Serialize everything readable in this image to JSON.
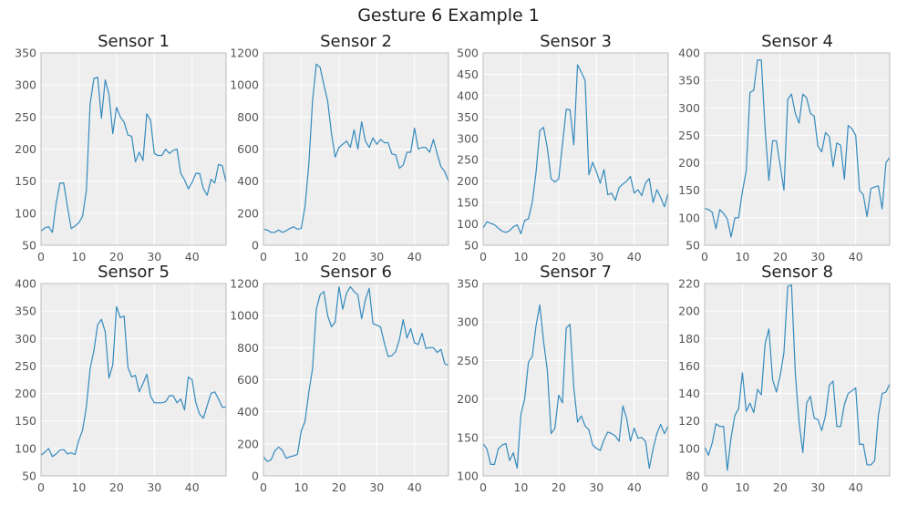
{
  "figure": {
    "title": "Gesture 6 Example 1"
  },
  "colors": {
    "line": "#348abd",
    "panel_bg": "#eeeeee",
    "grid": "#ffffff",
    "spine": "#bcbcbc",
    "tick_text": "#555555",
    "title_text": "#222222"
  },
  "chart_data": [
    {
      "type": "line",
      "title": "Sensor 1",
      "grid": true,
      "xlim": [
        0,
        49
      ],
      "ylim": [
        50,
        350
      ],
      "xticks": [
        0,
        10,
        20,
        30,
        40
      ],
      "yticks": [
        50,
        100,
        150,
        200,
        250,
        300,
        350
      ],
      "y": [
        72,
        77,
        79,
        70,
        115,
        147,
        147,
        110,
        76,
        80,
        85,
        95,
        135,
        270,
        310,
        312,
        248,
        308,
        285,
        224,
        265,
        250,
        242,
        222,
        220,
        180,
        195,
        182,
        255,
        245,
        193,
        190,
        190,
        200,
        193,
        198,
        200,
        162,
        152,
        138,
        148,
        162,
        162,
        138,
        128,
        153,
        147,
        176,
        174,
        148
      ]
    },
    {
      "type": "line",
      "title": "Sensor 2",
      "grid": true,
      "xlim": [
        0,
        49
      ],
      "ylim": [
        0,
        1200
      ],
      "xticks": [
        0,
        10,
        20,
        30,
        40
      ],
      "yticks": [
        0,
        200,
        400,
        600,
        800,
        1000,
        1200
      ],
      "y": [
        100,
        95,
        80,
        80,
        95,
        80,
        90,
        105,
        115,
        100,
        105,
        240,
        500,
        900,
        1130,
        1110,
        1000,
        900,
        700,
        550,
        610,
        630,
        650,
        610,
        720,
        600,
        770,
        650,
        610,
        670,
        630,
        660,
        640,
        640,
        570,
        565,
        480,
        500,
        580,
        580,
        730,
        600,
        610,
        610,
        580,
        660,
        570,
        490,
        460,
        400
      ]
    },
    {
      "type": "line",
      "title": "Sensor 3",
      "grid": true,
      "xlim": [
        0,
        49
      ],
      "ylim": [
        50,
        500
      ],
      "xticks": [
        0,
        10,
        20,
        30,
        40
      ],
      "yticks": [
        50,
        100,
        150,
        200,
        250,
        300,
        350,
        400,
        450,
        500
      ],
      "y": [
        90,
        105,
        101,
        98,
        90,
        83,
        80,
        84,
        93,
        98,
        77,
        108,
        112,
        150,
        220,
        318,
        326,
        277,
        205,
        198,
        205,
        285,
        368,
        367,
        285,
        472,
        455,
        435,
        215,
        244,
        222,
        195,
        227,
        168,
        172,
        155,
        185,
        193,
        200,
        211,
        172,
        180,
        166,
        196,
        206,
        150,
        180,
        162,
        140,
        172
      ]
    },
    {
      "type": "line",
      "title": "Sensor 4",
      "grid": true,
      "xlim": [
        0,
        49
      ],
      "ylim": [
        50,
        400
      ],
      "xticks": [
        0,
        10,
        20,
        30,
        40
      ],
      "yticks": [
        50,
        100,
        150,
        200,
        250,
        300,
        350,
        400
      ],
      "y": [
        117,
        115,
        110,
        80,
        115,
        108,
        98,
        65,
        100,
        100,
        148,
        185,
        328,
        332,
        387,
        387,
        262,
        168,
        240,
        240,
        195,
        150,
        315,
        325,
        290,
        272,
        325,
        318,
        290,
        285,
        230,
        220,
        255,
        248,
        193,
        236,
        232,
        170,
        268,
        262,
        250,
        150,
        142,
        102,
        153,
        156,
        158,
        116,
        200,
        210
      ]
    },
    {
      "type": "line",
      "title": "Sensor 5",
      "grid": true,
      "xlim": [
        0,
        49
      ],
      "ylim": [
        50,
        400
      ],
      "xticks": [
        0,
        10,
        20,
        30,
        40
      ],
      "yticks": [
        50,
        100,
        150,
        200,
        250,
        300,
        350,
        400
      ],
      "y": [
        88,
        93,
        100,
        85,
        90,
        97,
        98,
        90,
        92,
        89,
        115,
        133,
        175,
        245,
        278,
        325,
        335,
        312,
        228,
        252,
        358,
        338,
        341,
        248,
        230,
        233,
        203,
        218,
        235,
        195,
        183,
        183,
        183,
        185,
        196,
        196,
        183,
        190,
        170,
        230,
        225,
        183,
        162,
        155,
        178,
        200,
        203,
        190,
        175,
        175
      ]
    },
    {
      "type": "line",
      "title": "Sensor 6",
      "grid": true,
      "xlim": [
        0,
        49
      ],
      "ylim": [
        0,
        1200
      ],
      "xticks": [
        0,
        10,
        20,
        30,
        40
      ],
      "yticks": [
        0,
        200,
        400,
        600,
        800,
        1000,
        1200
      ],
      "y": [
        120,
        90,
        100,
        155,
        180,
        160,
        110,
        120,
        125,
        135,
        280,
        340,
        520,
        670,
        1040,
        1130,
        1150,
        1000,
        930,
        960,
        1180,
        1040,
        1140,
        1180,
        1150,
        1130,
        980,
        1100,
        1170,
        950,
        940,
        930,
        830,
        745,
        750,
        775,
        850,
        975,
        860,
        920,
        830,
        820,
        890,
        795,
        800,
        800,
        770,
        790,
        700,
        690
      ]
    },
    {
      "type": "line",
      "title": "Sensor 7",
      "grid": true,
      "xlim": [
        0,
        49
      ],
      "ylim": [
        100,
        350
      ],
      "xticks": [
        0,
        10,
        20,
        30,
        40
      ],
      "yticks": [
        100,
        150,
        200,
        250,
        300,
        350
      ],
      "y": [
        142,
        135,
        115,
        115,
        135,
        140,
        142,
        120,
        130,
        110,
        180,
        200,
        248,
        255,
        295,
        322,
        275,
        237,
        155,
        162,
        205,
        195,
        292,
        297,
        215,
        170,
        178,
        165,
        160,
        140,
        136,
        133,
        147,
        157,
        155,
        152,
        145,
        191,
        175,
        145,
        162,
        149,
        150,
        145,
        110,
        135,
        155,
        167,
        155,
        165
      ]
    },
    {
      "type": "line",
      "title": "Sensor 8",
      "grid": true,
      "xlim": [
        0,
        49
      ],
      "ylim": [
        80,
        220
      ],
      "xticks": [
        0,
        10,
        20,
        30,
        40
      ],
      "yticks": [
        80,
        100,
        120,
        140,
        160,
        180,
        200,
        220
      ],
      "y": [
        101,
        95,
        104,
        118,
        116,
        116,
        84,
        108,
        124,
        129,
        155,
        127,
        133,
        126,
        143,
        139,
        176,
        187,
        150,
        141,
        153,
        170,
        218,
        219,
        155,
        119,
        97,
        133,
        138,
        122,
        121,
        113,
        124,
        146,
        149,
        116,
        116,
        132,
        140,
        142,
        144,
        103,
        103,
        88,
        88,
        91,
        124,
        140,
        141,
        147
      ]
    }
  ]
}
